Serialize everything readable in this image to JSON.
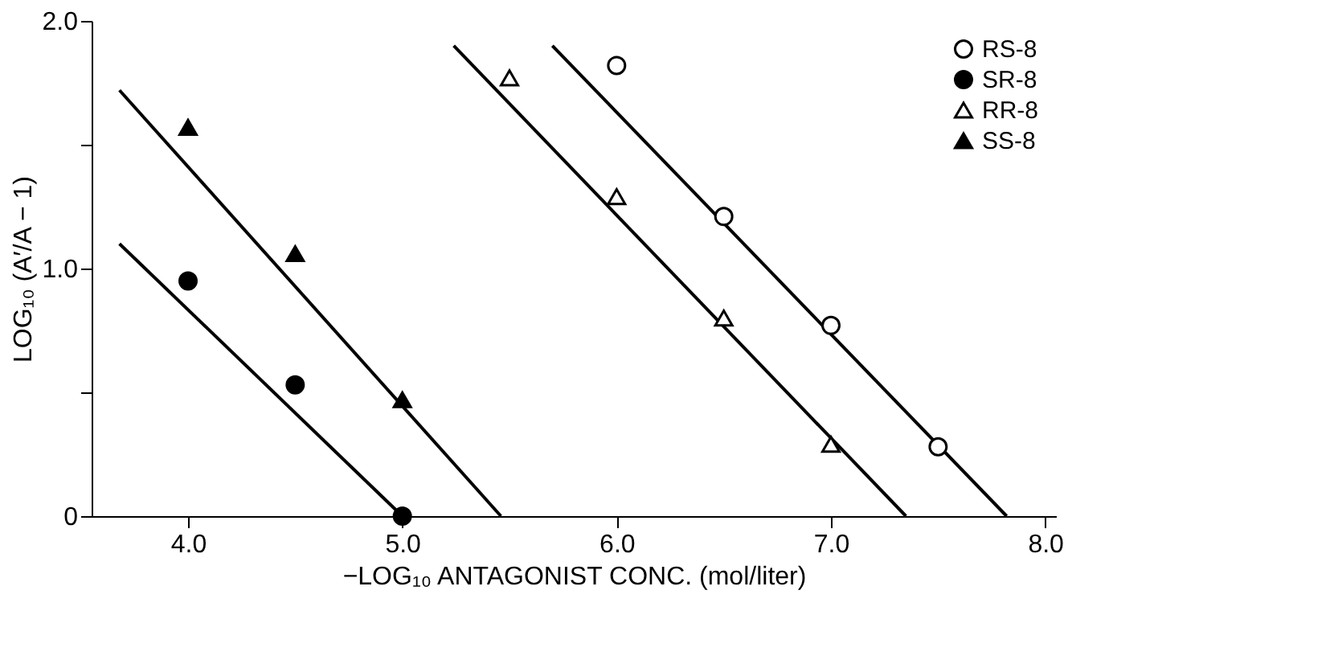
{
  "chart_data": {
    "type": "scatter",
    "xlabel": "−LOG₁₀ ANTAGONIST CONC. (mol/liter)",
    "ylabel": "LOG₁₀ (A′/A − 1)",
    "xlim": [
      3.55,
      8.05
    ],
    "ylim": [
      0,
      2.0
    ],
    "xticks": [
      {
        "value": 4,
        "label": "4.0"
      },
      {
        "value": 5,
        "label": "5.0"
      },
      {
        "value": 6,
        "label": "6.0"
      },
      {
        "value": 7,
        "label": "7.0"
      },
      {
        "value": 8,
        "label": "8.0"
      }
    ],
    "yticks": [
      0,
      {
        "value": 0.5,
        "label": null
      },
      {
        "value": 1,
        "label": "1.0"
      },
      {
        "value": 1.5,
        "label": null
      },
      {
        "value": 2,
        "label": "2.0"
      }
    ],
    "grid": false,
    "legend": "top right",
    "series": [
      {
        "name": "RS-8",
        "color": "#ffffff",
        "marker": "circle",
        "x": [
          6.0,
          6.5,
          7.0,
          7.5
        ],
        "values": [
          1.82,
          1.21,
          0.77,
          0.28
        ]
      },
      {
        "name": "SR-8",
        "color": "#000000",
        "marker": "circle",
        "x": [
          4.0,
          4.5,
          5.0
        ],
        "values": [
          0.95,
          0.53,
          0.0
        ]
      },
      {
        "name": "RR-8",
        "color": "#ffffff",
        "marker": "triangle",
        "x": [
          5.5,
          6.0,
          6.5,
          7.0
        ],
        "values": [
          1.77,
          1.29,
          0.8,
          0.29
        ]
      },
      {
        "name": "SS-8",
        "color": "#000000",
        "marker": "triangle",
        "x": [
          4.0,
          4.5,
          5.0
        ],
        "values": [
          1.57,
          1.06,
          0.47
        ]
      },
      {
        "type": "line",
        "color": "#000000",
        "x": [
          5.7,
          7.82
        ],
        "values": [
          1.9,
          0.0
        ]
      },
      {
        "type": "line",
        "color": "#000000",
        "x": [
          3.68,
          5.0
        ],
        "values": [
          1.1,
          0.0
        ]
      },
      {
        "type": "line",
        "color": "#000000",
        "x": [
          5.24,
          7.35
        ],
        "values": [
          1.9,
          0.0
        ]
      },
      {
        "type": "line",
        "color": "#000000",
        "x": [
          3.68,
          5.46
        ],
        "values": [
          1.72,
          0.0
        ]
      }
    ]
  }
}
